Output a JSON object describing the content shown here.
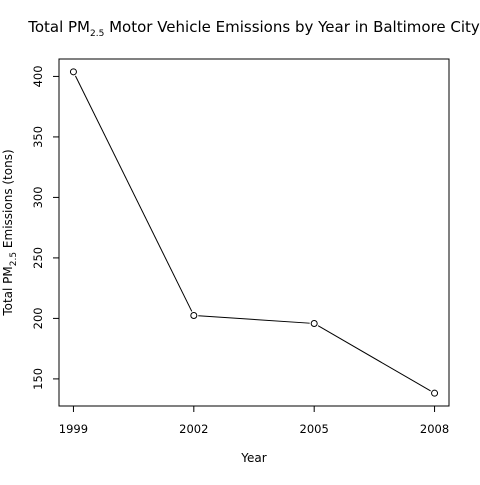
{
  "chart_data": {
    "type": "line",
    "title": {
      "prefix": "Total PM",
      "subscript": "2.5",
      "suffix": " Motor Vehicle Emissions by Year in Baltimore City"
    },
    "xlabel": "Year",
    "ylabel": {
      "prefix": "Total PM",
      "subscript": "2.5",
      "suffix": " Emissions (tons)"
    },
    "x": [
      1999,
      2002,
      2005,
      2008
    ],
    "values": [
      403.8,
      202.4,
      195.8,
      138.2
    ],
    "x_ticks": [
      "1999",
      "2002",
      "2005",
      "2008"
    ],
    "y_ticks": [
      150,
      200,
      250,
      300,
      350,
      400
    ],
    "xlim": [
      1998.64,
      2008.36
    ],
    "ylim": [
      127.6,
      414.4
    ],
    "grid": false,
    "markers": "open-circle",
    "line_color": "#000000"
  }
}
